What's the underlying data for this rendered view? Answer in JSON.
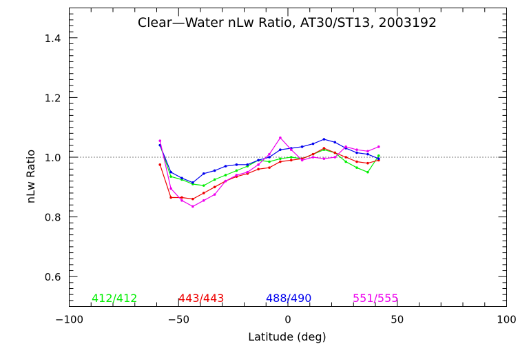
{
  "chart_data": {
    "type": "line",
    "title": "Clear—Water nLw Ratio, AT30/ST13, 2003192",
    "xlabel": "Latitude (deg)",
    "ylabel": "nLw Ratio",
    "xlim": [
      -100,
      100
    ],
    "ylim": [
      0.5,
      1.5
    ],
    "x_ticks": [
      -100,
      -50,
      0,
      50,
      100
    ],
    "x_tick_labels": [
      "−100",
      "−50",
      "0",
      "50",
      "100"
    ],
    "y_ticks": [
      0.6,
      0.8,
      1.0,
      1.2,
      1.4
    ],
    "y_tick_labels": [
      "0.6",
      "0.8",
      "1.0",
      "1.2",
      "1.4"
    ],
    "reference_line": 1.0,
    "grid": false,
    "legend_placement": "bottom",
    "series": [
      {
        "name": "412/412",
        "color": "#00ee00",
        "x": [
          -58.5,
          -53.5,
          -48.5,
          -43.5,
          -38.5,
          -33.5,
          -28.5,
          -23.5,
          -18.5,
          -13.5,
          -8.5,
          -3.5,
          1.5,
          6.5,
          11.5,
          16.5,
          21.5,
          26.5,
          31.5,
          36.5,
          41.5
        ],
        "y": [
          1.04,
          0.935,
          0.925,
          0.91,
          0.905,
          0.925,
          0.94,
          0.955,
          0.97,
          0.99,
          0.985,
          0.995,
          1.0,
          0.995,
          1.01,
          1.025,
          1.015,
          0.985,
          0.965,
          0.95,
          1.005
        ]
      },
      {
        "name": "443/443",
        "color": "#ee0000",
        "x": [
          -58.5,
          -53.5,
          -48.5,
          -43.5,
          -38.5,
          -33.5,
          -28.5,
          -23.5,
          -18.5,
          -13.5,
          -8.5,
          -3.5,
          1.5,
          6.5,
          11.5,
          16.5,
          21.5,
          26.5,
          31.5,
          36.5,
          41.5
        ],
        "y": [
          0.975,
          0.865,
          0.865,
          0.86,
          0.88,
          0.9,
          0.92,
          0.935,
          0.945,
          0.96,
          0.965,
          0.985,
          0.99,
          0.995,
          1.01,
          1.03,
          1.015,
          1.0,
          0.985,
          0.98,
          0.99
        ]
      },
      {
        "name": "488/490",
        "color": "#0000ee",
        "x": [
          -58.5,
          -53.5,
          -48.5,
          -43.5,
          -38.5,
          -33.5,
          -28.5,
          -23.5,
          -18.5,
          -13.5,
          -8.5,
          -3.5,
          1.5,
          6.5,
          11.5,
          16.5,
          21.5,
          26.5,
          31.5,
          36.5,
          41.5
        ],
        "y": [
          1.04,
          0.95,
          0.93,
          0.915,
          0.945,
          0.955,
          0.97,
          0.975,
          0.975,
          0.99,
          1.0,
          1.025,
          1.03,
          1.035,
          1.045,
          1.06,
          1.05,
          1.03,
          1.015,
          1.01,
          0.995
        ]
      },
      {
        "name": "551/555",
        "color": "#ee00ee",
        "x": [
          -58.5,
          -53.5,
          -48.5,
          -43.5,
          -38.5,
          -33.5,
          -28.5,
          -23.5,
          -18.5,
          -13.5,
          -8.5,
          -3.5,
          1.5,
          6.5,
          11.5,
          16.5,
          21.5,
          26.5,
          31.5,
          36.5,
          41.5
        ],
        "y": [
          1.055,
          0.895,
          0.855,
          0.835,
          0.855,
          0.875,
          0.92,
          0.94,
          0.95,
          0.975,
          1.01,
          1.065,
          1.025,
          0.99,
          1.0,
          0.995,
          1.0,
          1.035,
          1.025,
          1.02,
          1.035
        ]
      }
    ]
  }
}
